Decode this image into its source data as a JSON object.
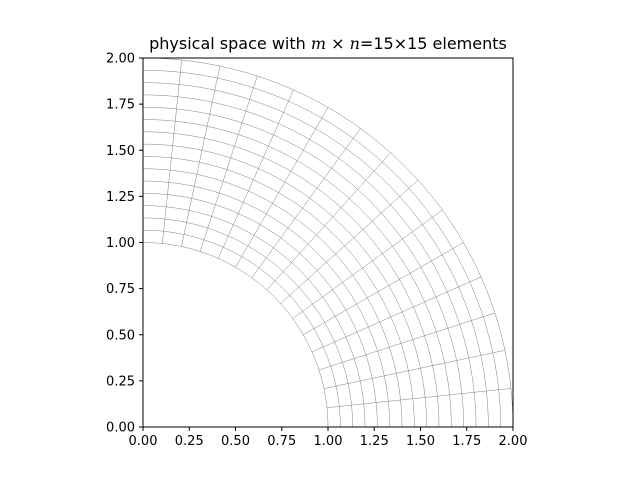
{
  "chart_data": {
    "type": "mesh",
    "title": {
      "prefix": "physical space with ",
      "m": "m",
      "times1": " × ",
      "n": "n",
      "suffix": "=15×15 elements"
    },
    "xlim": [
      0.0,
      2.0
    ],
    "ylim": [
      0.0,
      2.0
    ],
    "xticks": [
      "0.00",
      "0.25",
      "0.50",
      "0.75",
      "1.00",
      "1.25",
      "1.50",
      "1.75",
      "2.00"
    ],
    "yticks": [
      "0.00",
      "0.25",
      "0.50",
      "0.75",
      "1.00",
      "1.25",
      "1.50",
      "1.75",
      "2.00"
    ],
    "xtick_values": [
      0.0,
      0.25,
      0.5,
      0.75,
      1.0,
      1.25,
      1.5,
      1.75,
      2.0
    ],
    "ytick_values": [
      0.0,
      0.25,
      0.5,
      0.75,
      1.0,
      1.25,
      1.5,
      1.75,
      2.0
    ],
    "domain": {
      "shape": "annulus-quarter",
      "r_inner": 1.0,
      "r_outer": 2.0,
      "theta_start_deg": 0,
      "theta_end_deg": 90
    },
    "elements_m": 15,
    "elements_n": 15,
    "grid": false,
    "line_color": "#808080"
  }
}
